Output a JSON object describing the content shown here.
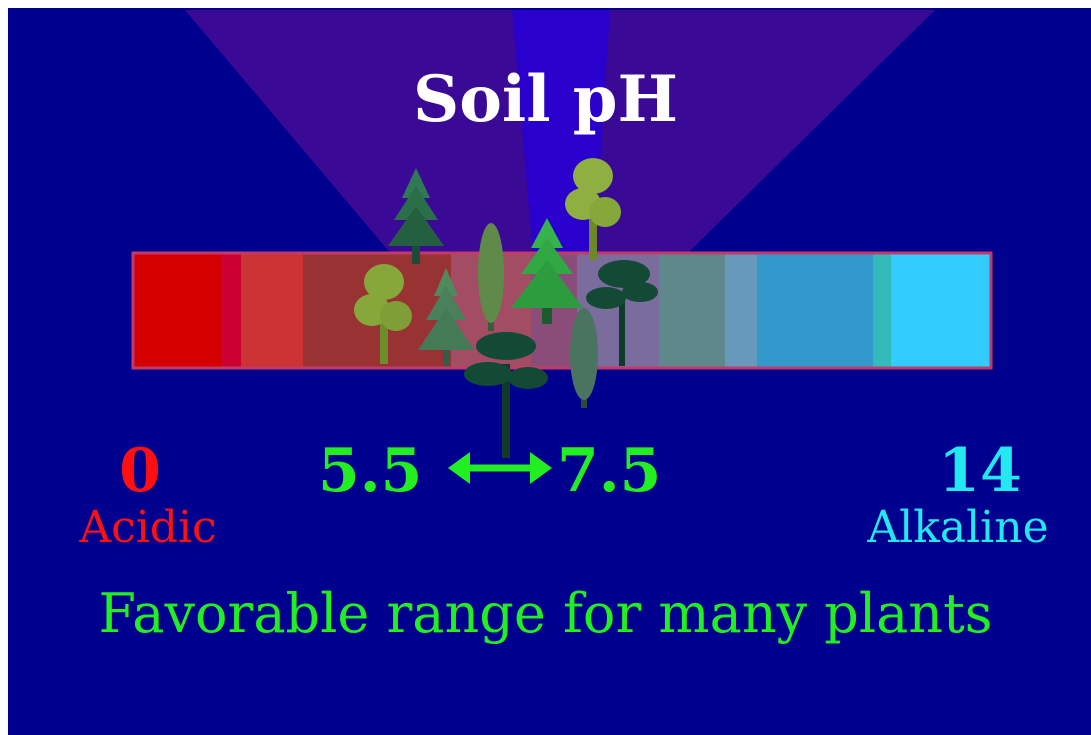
{
  "title": "Soil pH",
  "scale": {
    "min_value": "0",
    "min_label": "Acidic",
    "max_value": "14",
    "max_label": "Alkaline",
    "favorable_low": "5.5",
    "favorable_high": "7.5"
  },
  "caption": "Favorable range for many plants",
  "colors": {
    "background": "#00008e",
    "beam_outer": "#3a0a96",
    "beam_inner": "#2a00cc",
    "title": "#ffffff",
    "acidic": "#ff1010",
    "alkaline": "#22e8f2",
    "favorable": "#22ee22",
    "bar_border": "#c23a6a"
  },
  "bar_segments": [
    "#d40000",
    "#cc0033",
    "#cc3333",
    "#993333",
    "#a24d63",
    "#8a4d7a",
    "#7a6c9c",
    "#5f888c",
    "#6699bb",
    "#3399cc",
    "#33bbbb",
    "#33ccff"
  ],
  "tree_icons": [
    "fir-tree-icon",
    "deciduous-tree-icon",
    "fir-tree-icon",
    "cypress-tree-icon",
    "spruce-tree-icon",
    "deciduous-tree-icon",
    "pine-tree-icon",
    "cypress-tree-icon",
    "pine-tree-icon"
  ]
}
